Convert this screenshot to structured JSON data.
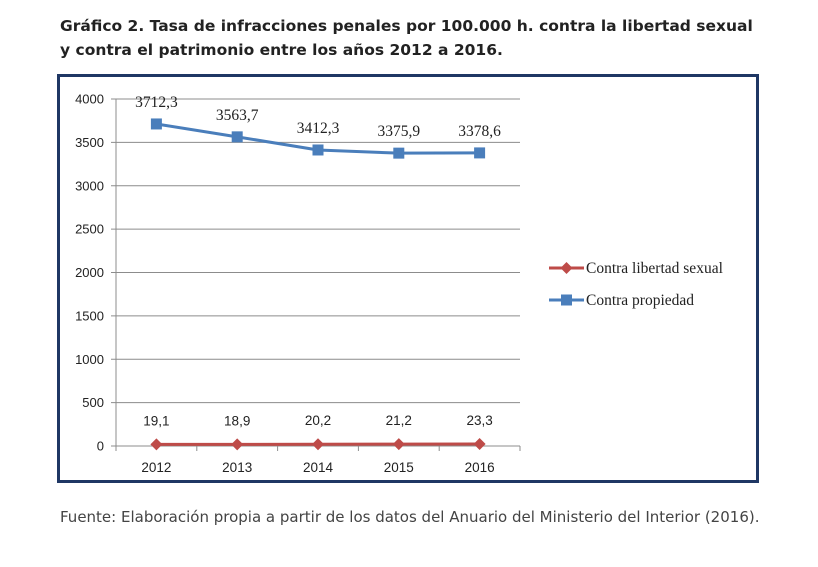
{
  "title": "Gráfico 2. Tasa de infracciones penales por 100.000 h. contra la libertad sexual y contra el patrimonio entre los años 2012 a 2016.",
  "source": "Fuente: Elaboración propia a partir de los datos del Anuario del Ministerio del Interior (2016).",
  "chart_data": {
    "type": "line",
    "title": "Gráfico 2. Tasa de infracciones penales por 100.000 h. contra la libertad sexual y contra el patrimonio entre los años 2012 a 2016.",
    "xlabel": "",
    "ylabel": "",
    "categories": [
      "2012",
      "2013",
      "2014",
      "2015",
      "2016"
    ],
    "ylim": [
      0,
      4000
    ],
    "yticks": [
      0,
      500,
      1000,
      1500,
      2000,
      2500,
      3000,
      3500,
      4000
    ],
    "grid": true,
    "legend_position": "right",
    "series": [
      {
        "name": "Contra libertad sexual",
        "values": [
          19.1,
          18.9,
          20.2,
          21.2,
          23.3
        ],
        "labels": [
          "19,1",
          "18,9",
          "20,2",
          "21,2",
          "23,3"
        ],
        "color": "#be4b48",
        "marker": "diamond"
      },
      {
        "name": "Contra propiedad",
        "values": [
          3712.3,
          3563.7,
          3412.3,
          3375.9,
          3378.6
        ],
        "labels": [
          "3712,3",
          "3563,7",
          "3412,3",
          "3375,9",
          "3378,6"
        ],
        "color": "#4a7ebb",
        "marker": "square"
      }
    ]
  }
}
